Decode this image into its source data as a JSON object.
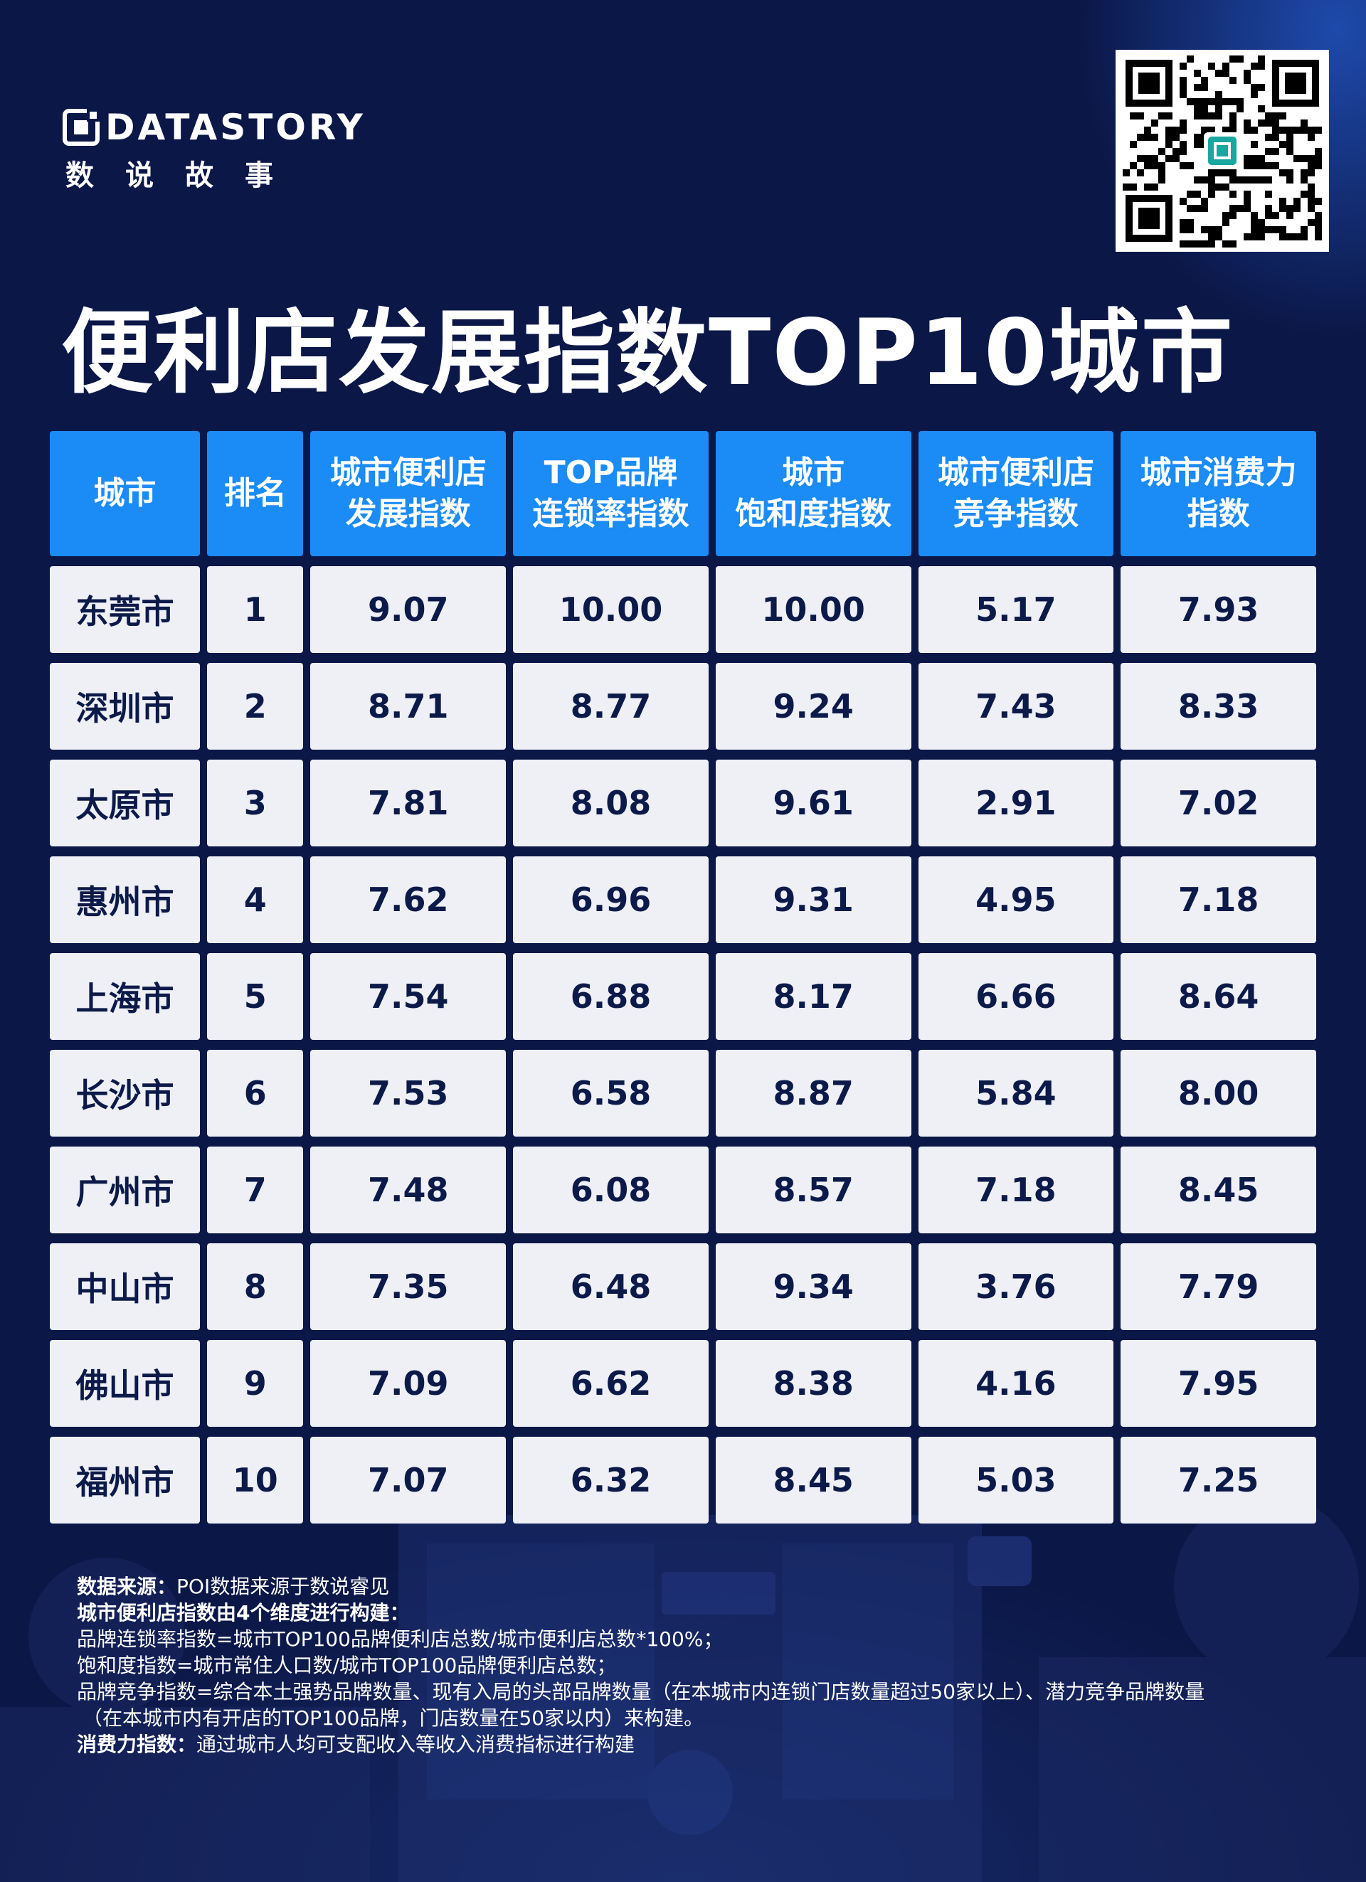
{
  "brand": {
    "name": "DATASTORY",
    "subtitle": "数说故事"
  },
  "title": "便利店发展指数TOP10城市",
  "colors": {
    "background": "#0b1747",
    "header": "#1b8bf5",
    "cell": "#eef0f6",
    "cell_text": "#0c1a49"
  },
  "chart_data": {
    "type": "table",
    "columns": [
      "城市",
      "排名",
      "城市便利店\n发展指数",
      "TOP品牌\n连锁率指数",
      "城市\n饱和度指数",
      "城市便利店\n竞争指数",
      "城市消费力\n指数"
    ],
    "rows": [
      [
        "东莞市",
        "1",
        "9.07",
        "10.00",
        "10.00",
        "5.17",
        "7.93"
      ],
      [
        "深圳市",
        "2",
        "8.71",
        "8.77",
        "9.24",
        "7.43",
        "8.33"
      ],
      [
        "太原市",
        "3",
        "7.81",
        "8.08",
        "9.61",
        "2.91",
        "7.02"
      ],
      [
        "惠州市",
        "4",
        "7.62",
        "6.96",
        "9.31",
        "4.95",
        "7.18"
      ],
      [
        "上海市",
        "5",
        "7.54",
        "6.88",
        "8.17",
        "6.66",
        "8.64"
      ],
      [
        "长沙市",
        "6",
        "7.53",
        "6.58",
        "8.87",
        "5.84",
        "8.00"
      ],
      [
        "广州市",
        "7",
        "7.48",
        "6.08",
        "8.57",
        "7.18",
        "8.45"
      ],
      [
        "中山市",
        "8",
        "7.35",
        "6.48",
        "9.34",
        "3.76",
        "7.79"
      ],
      [
        "佛山市",
        "9",
        "7.09",
        "6.62",
        "8.38",
        "4.16",
        "7.95"
      ],
      [
        "福州市",
        "10",
        "7.07",
        "6.32",
        "8.45",
        "5.03",
        "7.25"
      ]
    ]
  },
  "notes": [
    {
      "key": "数据来源：",
      "text": "POI数据来源于数说睿见"
    },
    {
      "key": "城市便利店指数由4个维度进行构建：",
      "text": ""
    },
    {
      "key": "",
      "text": "品牌连锁率指数=城市TOP100品牌便利店总数/城市便利店总数*100%；"
    },
    {
      "key": "",
      "text": "饱和度指数=城市常住人口数/城市TOP100品牌便利店总数；"
    },
    {
      "key": "",
      "text": "品牌竞争指数=综合本土强势品牌数量、现有入局的头部品牌数量（在本城市内连锁门店数量超过50家以上）、潜力竞争品牌数量"
    },
    {
      "key": "",
      "text": "（在本城市内有开店的TOP100品牌，门店数量在50家以内）来构建。"
    },
    {
      "key": "消费力指数：",
      "text": "通过城市人均可支配收入等收入消费指标进行构建"
    }
  ]
}
